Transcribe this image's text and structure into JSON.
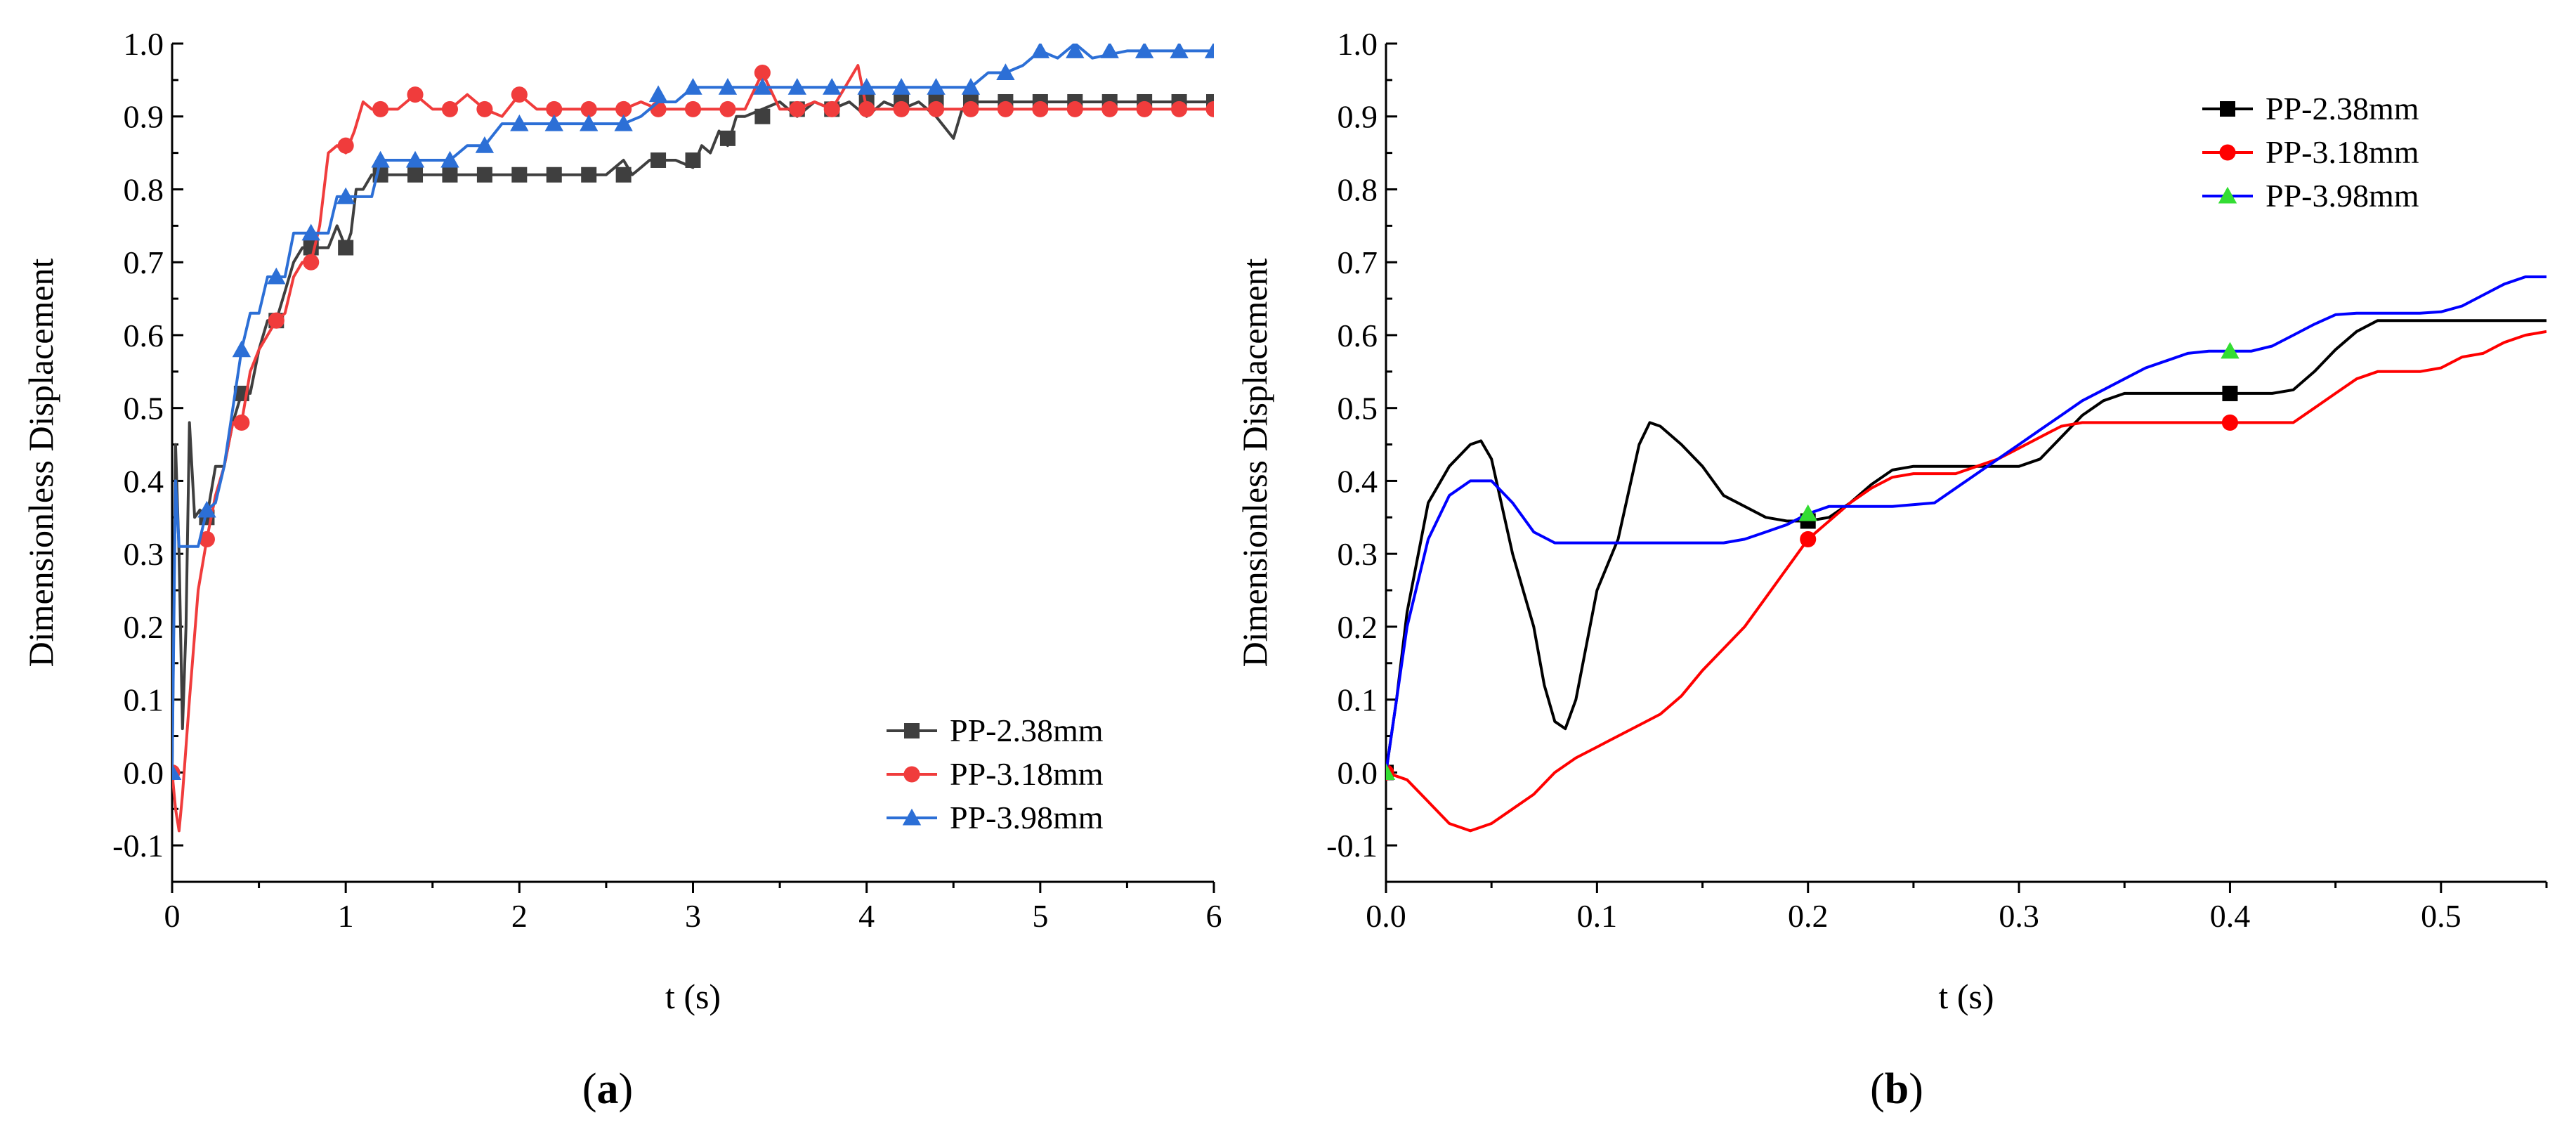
{
  "colors": {
    "a": [
      "#3f3f3f",
      "#f03c3c",
      "#2c6fd6"
    ],
    "b": [
      "#000000",
      "#ff0000",
      "#0000ff"
    ],
    "b_markers": [
      "#000000",
      "#ff0000",
      "#33dd33"
    ]
  },
  "chart_data": [
    {
      "panel": "a",
      "type": "line",
      "xlabel": "t (s)",
      "ylabel": "Dimensionless Displacement",
      "xlim": [
        0,
        6
      ],
      "ylim": [
        -0.15,
        1.0
      ],
      "xticks": [
        0,
        1,
        2,
        3,
        4,
        5,
        6
      ],
      "yticks": [
        -0.1,
        0.0,
        0.1,
        0.2,
        0.3,
        0.4,
        0.5,
        0.6,
        0.7,
        0.8,
        0.9,
        1.0
      ],
      "legend_position": "bottom-right",
      "panel_label": {
        "open": "(",
        "letter": "a",
        "close": ")"
      },
      "series": [
        {
          "name": "PP-2.38mm",
          "marker": "square",
          "x": [
            0,
            0.02,
            0.04,
            0.06,
            0.08,
            0.1,
            0.13,
            0.16,
            0.2,
            0.25,
            0.3,
            0.35,
            0.4,
            0.45,
            0.5,
            0.55,
            0.6,
            0.65,
            0.7,
            0.75,
            0.8,
            0.85,
            0.9,
            0.95,
            1.0,
            1.03,
            1.06,
            1.1,
            1.15,
            1.2,
            1.5,
            2.0,
            2.5,
            2.6,
            2.65,
            2.7,
            2.75,
            2.8,
            2.9,
            3.0,
            3.05,
            3.1,
            3.15,
            3.2,
            3.25,
            3.3,
            3.4,
            3.5,
            3.6,
            3.7,
            3.8,
            3.9,
            4.0,
            4.1,
            4.2,
            4.3,
            4.4,
            4.5,
            4.55,
            4.6,
            4.7,
            4.8,
            4.9,
            5.0,
            5.5,
            6.0
          ],
          "y": [
            0.0,
            0.45,
            0.3,
            0.06,
            0.2,
            0.48,
            0.35,
            0.36,
            0.35,
            0.42,
            0.42,
            0.48,
            0.52,
            0.52,
            0.58,
            0.62,
            0.62,
            0.66,
            0.7,
            0.72,
            0.72,
            0.72,
            0.72,
            0.75,
            0.72,
            0.74,
            0.8,
            0.8,
            0.82,
            0.82,
            0.82,
            0.82,
            0.82,
            0.84,
            0.82,
            0.83,
            0.84,
            0.84,
            0.84,
            0.83,
            0.86,
            0.85,
            0.88,
            0.86,
            0.9,
            0.9,
            0.91,
            0.92,
            0.9,
            0.92,
            0.91,
            0.92,
            0.9,
            0.92,
            0.91,
            0.92,
            0.9,
            0.87,
            0.91,
            0.92,
            0.92,
            0.92,
            0.92,
            0.92,
            0.92,
            0.92
          ],
          "marker_x": [
            0.2,
            0.4,
            0.6,
            0.8,
            1.0,
            1.2,
            1.4,
            1.6,
            1.8,
            2.0,
            2.2,
            2.4,
            2.6,
            2.8,
            3.0,
            3.2,
            3.4,
            3.6,
            3.8,
            4.0,
            4.2,
            4.4,
            4.6,
            4.8,
            5.0,
            5.2,
            5.4,
            5.6,
            5.8,
            6.0
          ],
          "marker_y": [
            0.35,
            0.52,
            0.62,
            0.72,
            0.72,
            0.82,
            0.82,
            0.82,
            0.82,
            0.82,
            0.82,
            0.82,
            0.82,
            0.84,
            0.84,
            0.87,
            0.9,
            0.91,
            0.91,
            0.92,
            0.92,
            0.92,
            0.92,
            0.92,
            0.92,
            0.92,
            0.92,
            0.92,
            0.92,
            0.92
          ]
        },
        {
          "name": "PP-3.18mm",
          "marker": "circle",
          "x": [
            0,
            0.02,
            0.04,
            0.06,
            0.1,
            0.15,
            0.2,
            0.25,
            0.3,
            0.35,
            0.4,
            0.45,
            0.5,
            0.55,
            0.6,
            0.65,
            0.7,
            0.75,
            0.8,
            0.85,
            0.9,
            0.95,
            1.0,
            1.05,
            1.1,
            1.15,
            1.2,
            1.3,
            1.4,
            1.5,
            1.6,
            1.7,
            1.8,
            1.9,
            2.0,
            2.1,
            2.2,
            2.4,
            2.6,
            2.7,
            2.8,
            3.0,
            3.2,
            3.3,
            3.4,
            3.5,
            3.6,
            3.7,
            3.8,
            3.9,
            3.95,
            4.0,
            4.2,
            4.4,
            4.6,
            4.8,
            5.0,
            5.5,
            6.0
          ],
          "y": [
            0.0,
            -0.05,
            -0.08,
            -0.03,
            0.1,
            0.25,
            0.32,
            0.38,
            0.42,
            0.48,
            0.48,
            0.55,
            0.58,
            0.6,
            0.62,
            0.63,
            0.68,
            0.7,
            0.7,
            0.75,
            0.85,
            0.86,
            0.85,
            0.88,
            0.92,
            0.91,
            0.91,
            0.91,
            0.93,
            0.91,
            0.91,
            0.93,
            0.91,
            0.9,
            0.93,
            0.91,
            0.91,
            0.91,
            0.91,
            0.92,
            0.91,
            0.91,
            0.91,
            0.91,
            0.96,
            0.91,
            0.91,
            0.92,
            0.91,
            0.95,
            0.97,
            0.91,
            0.91,
            0.91,
            0.91,
            0.91,
            0.91,
            0.91,
            0.91
          ],
          "marker_x": [
            0.0,
            0.2,
            0.4,
            0.6,
            0.8,
            1.0,
            1.2,
            1.4,
            1.6,
            1.8,
            2.0,
            2.2,
            2.4,
            2.6,
            2.8,
            3.0,
            3.2,
            3.4,
            3.6,
            3.8,
            4.0,
            4.2,
            4.4,
            4.6,
            4.8,
            5.0,
            5.2,
            5.4,
            5.6,
            5.8,
            6.0
          ],
          "marker_y": [
            0.0,
            0.32,
            0.48,
            0.62,
            0.7,
            0.86,
            0.91,
            0.93,
            0.91,
            0.91,
            0.93,
            0.91,
            0.91,
            0.91,
            0.91,
            0.91,
            0.91,
            0.96,
            0.91,
            0.91,
            0.91,
            0.91,
            0.91,
            0.91,
            0.91,
            0.91,
            0.91,
            0.91,
            0.91,
            0.91,
            0.91
          ]
        },
        {
          "name": "PP-3.98mm",
          "marker": "triangle",
          "x": [
            0,
            0.02,
            0.04,
            0.06,
            0.08,
            0.1,
            0.15,
            0.2,
            0.25,
            0.3,
            0.35,
            0.4,
            0.45,
            0.5,
            0.55,
            0.6,
            0.65,
            0.7,
            0.75,
            0.8,
            0.85,
            0.9,
            0.95,
            1.0,
            1.05,
            1.1,
            1.15,
            1.2,
            1.4,
            1.6,
            1.7,
            1.8,
            1.9,
            2.0,
            2.4,
            2.6,
            2.7,
            2.8,
            2.9,
            3.0,
            3.2,
            3.6,
            4.0,
            4.4,
            4.6,
            4.7,
            4.8,
            4.9,
            5.0,
            5.1,
            5.2,
            5.3,
            5.5,
            6.0
          ],
          "y": [
            0.0,
            0.4,
            0.31,
            0.31,
            0.31,
            0.31,
            0.31,
            0.36,
            0.37,
            0.42,
            0.5,
            0.58,
            0.63,
            0.63,
            0.68,
            0.68,
            0.68,
            0.74,
            0.74,
            0.74,
            0.74,
            0.74,
            0.79,
            0.79,
            0.79,
            0.79,
            0.79,
            0.84,
            0.84,
            0.84,
            0.86,
            0.86,
            0.89,
            0.89,
            0.89,
            0.89,
            0.9,
            0.92,
            0.92,
            0.94,
            0.94,
            0.94,
            0.94,
            0.94,
            0.94,
            0.96,
            0.96,
            0.97,
            0.99,
            0.98,
            1.0,
            0.98,
            0.99,
            0.99
          ],
          "marker_x": [
            0.0,
            0.2,
            0.4,
            0.6,
            0.8,
            1.0,
            1.2,
            1.4,
            1.6,
            1.8,
            2.0,
            2.2,
            2.4,
            2.6,
            2.8,
            3.0,
            3.2,
            3.4,
            3.6,
            3.8,
            4.0,
            4.2,
            4.4,
            4.6,
            4.8,
            5.0,
            5.2,
            5.4,
            5.6,
            5.8,
            6.0
          ],
          "marker_y": [
            0.0,
            0.36,
            0.58,
            0.68,
            0.74,
            0.79,
            0.84,
            0.84,
            0.84,
            0.86,
            0.89,
            0.89,
            0.89,
            0.89,
            0.93,
            0.94,
            0.94,
            0.94,
            0.94,
            0.94,
            0.94,
            0.94,
            0.94,
            0.94,
            0.96,
            0.99,
            0.99,
            0.99,
            0.99,
            0.99,
            0.99
          ]
        }
      ]
    },
    {
      "panel": "b",
      "type": "line",
      "xlabel": "t (s)",
      "ylabel": "Dimensionless Displacement",
      "xlim": [
        0,
        0.55
      ],
      "ylim": [
        -0.15,
        1.0
      ],
      "xticks": [
        0.0,
        0.1,
        0.2,
        0.3,
        0.4,
        0.5
      ],
      "yticks": [
        -0.1,
        0.0,
        0.1,
        0.2,
        0.3,
        0.4,
        0.5,
        0.6,
        0.7,
        0.8,
        0.9,
        1.0
      ],
      "legend_position": "top-right",
      "panel_label": {
        "open": "(",
        "letter": "b",
        "close": ")"
      },
      "series": [
        {
          "name": "PP-2.38mm",
          "marker": "square",
          "x": [
            0,
            0.005,
            0.01,
            0.02,
            0.03,
            0.04,
            0.045,
            0.05,
            0.06,
            0.07,
            0.075,
            0.08,
            0.085,
            0.09,
            0.1,
            0.11,
            0.12,
            0.125,
            0.13,
            0.14,
            0.15,
            0.16,
            0.17,
            0.18,
            0.19,
            0.2,
            0.21,
            0.22,
            0.23,
            0.24,
            0.25,
            0.26,
            0.27,
            0.28,
            0.29,
            0.3,
            0.31,
            0.32,
            0.33,
            0.34,
            0.35,
            0.36,
            0.37,
            0.38,
            0.39,
            0.4,
            0.41,
            0.42,
            0.43,
            0.44,
            0.45,
            0.46,
            0.47,
            0.48,
            0.49,
            0.5,
            0.52,
            0.55
          ],
          "y": [
            0.0,
            0.1,
            0.22,
            0.37,
            0.42,
            0.45,
            0.455,
            0.43,
            0.3,
            0.2,
            0.12,
            0.07,
            0.06,
            0.1,
            0.25,
            0.32,
            0.45,
            0.48,
            0.475,
            0.45,
            0.42,
            0.38,
            0.365,
            0.35,
            0.345,
            0.345,
            0.35,
            0.37,
            0.395,
            0.415,
            0.42,
            0.42,
            0.42,
            0.42,
            0.42,
            0.42,
            0.43,
            0.46,
            0.49,
            0.51,
            0.52,
            0.52,
            0.52,
            0.52,
            0.52,
            0.52,
            0.52,
            0.52,
            0.525,
            0.55,
            0.58,
            0.605,
            0.62,
            0.62,
            0.62,
            0.62,
            0.62,
            0.62
          ],
          "marker_x": [
            0.0,
            0.2,
            0.4
          ],
          "marker_y": [
            0.0,
            0.345,
            0.52
          ]
        },
        {
          "name": "PP-3.18mm",
          "marker": "circle",
          "x": [
            0,
            0.01,
            0.02,
            0.03,
            0.04,
            0.05,
            0.06,
            0.07,
            0.08,
            0.09,
            0.1,
            0.11,
            0.12,
            0.13,
            0.14,
            0.15,
            0.16,
            0.17,
            0.18,
            0.19,
            0.2,
            0.21,
            0.22,
            0.23,
            0.24,
            0.25,
            0.26,
            0.27,
            0.28,
            0.29,
            0.3,
            0.31,
            0.32,
            0.33,
            0.34,
            0.35,
            0.36,
            0.37,
            0.38,
            0.39,
            0.4,
            0.41,
            0.42,
            0.43,
            0.44,
            0.45,
            0.46,
            0.47,
            0.48,
            0.49,
            0.5,
            0.51,
            0.52,
            0.53,
            0.54,
            0.55
          ],
          "y": [
            0.0,
            -0.01,
            -0.04,
            -0.07,
            -0.08,
            -0.07,
            -0.05,
            -0.03,
            0.0,
            0.02,
            0.035,
            0.05,
            0.065,
            0.08,
            0.105,
            0.14,
            0.17,
            0.2,
            0.24,
            0.28,
            0.32,
            0.345,
            0.37,
            0.39,
            0.405,
            0.41,
            0.41,
            0.41,
            0.42,
            0.43,
            0.445,
            0.46,
            0.475,
            0.48,
            0.48,
            0.48,
            0.48,
            0.48,
            0.48,
            0.48,
            0.48,
            0.48,
            0.48,
            0.48,
            0.5,
            0.52,
            0.54,
            0.55,
            0.55,
            0.55,
            0.555,
            0.57,
            0.575,
            0.59,
            0.6,
            0.605
          ],
          "marker_x": [
            0.0,
            0.2,
            0.4
          ],
          "marker_y": [
            0.0,
            0.32,
            0.48
          ]
        },
        {
          "name": "PP-3.98mm",
          "marker": "triangle",
          "x": [
            0,
            0.005,
            0.01,
            0.02,
            0.03,
            0.04,
            0.05,
            0.06,
            0.07,
            0.08,
            0.1,
            0.12,
            0.14,
            0.16,
            0.17,
            0.18,
            0.19,
            0.2,
            0.21,
            0.22,
            0.24,
            0.26,
            0.27,
            0.28,
            0.29,
            0.3,
            0.31,
            0.32,
            0.33,
            0.34,
            0.35,
            0.36,
            0.37,
            0.38,
            0.39,
            0.4,
            0.41,
            0.42,
            0.43,
            0.44,
            0.45,
            0.46,
            0.47,
            0.48,
            0.49,
            0.5,
            0.51,
            0.52,
            0.53,
            0.54,
            0.55
          ],
          "y": [
            0.0,
            0.1,
            0.2,
            0.32,
            0.38,
            0.4,
            0.4,
            0.37,
            0.33,
            0.315,
            0.315,
            0.315,
            0.315,
            0.315,
            0.32,
            0.33,
            0.34,
            0.355,
            0.365,
            0.365,
            0.365,
            0.37,
            0.39,
            0.41,
            0.43,
            0.45,
            0.47,
            0.49,
            0.51,
            0.525,
            0.54,
            0.555,
            0.565,
            0.575,
            0.578,
            0.578,
            0.578,
            0.585,
            0.6,
            0.615,
            0.628,
            0.63,
            0.63,
            0.63,
            0.63,
            0.632,
            0.64,
            0.655,
            0.67,
            0.68,
            0.68
          ],
          "marker_x": [
            0.0,
            0.2,
            0.4
          ],
          "marker_y": [
            0.0,
            0.355,
            0.578
          ]
        }
      ]
    }
  ]
}
